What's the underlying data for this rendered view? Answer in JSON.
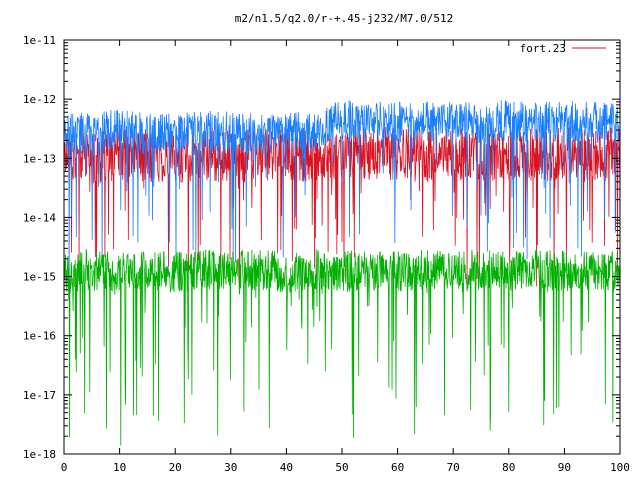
{
  "chart_data": {
    "type": "line",
    "title": "m2/n1.5/q2.0/r-+.45-j232/M7.0/512",
    "xlabel": "",
    "ylabel": "",
    "xlim": [
      0,
      100
    ],
    "ylim": [
      1e-18,
      1e-11
    ],
    "yscale": "log",
    "grid": false,
    "legend_position": "top-right",
    "x_ticks": [
      0,
      10,
      20,
      30,
      40,
      50,
      60,
      70,
      80,
      90,
      100
    ],
    "x_tick_labels": [
      "0",
      "10",
      "20",
      "30",
      "40",
      "50",
      "60",
      "70",
      "80",
      "90",
      "100"
    ],
    "y_ticks": [
      1e-18,
      1e-17,
      1e-16,
      1e-15,
      1e-14,
      1e-13,
      1e-12,
      1e-11
    ],
    "y_tick_labels": [
      "1e-18",
      "1e-17",
      "1e-16",
      "1e-15",
      "1e-14",
      "1e-13",
      "1e-12",
      "1e-11"
    ],
    "series": [
      {
        "name": "fort.23",
        "color": "#dd1122",
        "x": [
          0,
          5,
          10,
          15,
          20,
          25,
          30,
          35,
          40,
          45,
          50,
          55,
          60,
          65,
          70,
          75,
          80,
          85,
          90,
          95,
          100
        ],
        "y": [
          1.2e-13,
          1e-13,
          1.2e-13,
          1.1e-13,
          1e-13,
          1.2e-13,
          1.1e-13,
          1.1e-13,
          1.2e-13,
          1e-13,
          1.3e-13,
          1.2e-13,
          1.2e-13,
          1.1e-13,
          1.2e-13,
          1.1e-13,
          1.2e-13,
          1.1e-13,
          1.2e-13,
          1.1e-13,
          1.2e-13
        ]
      },
      {
        "color": "#1a7fff",
        "x": [
          0,
          5,
          10,
          15,
          20,
          25,
          30,
          35,
          40,
          45,
          50,
          55,
          60,
          65,
          70,
          75,
          80,
          85,
          90,
          95,
          100
        ],
        "y": [
          2.5e-13,
          2.8e-13,
          3e-13,
          2.6e-13,
          2.7e-13,
          2.8e-13,
          2.9e-13,
          2.6e-13,
          2.8e-13,
          2.7e-13,
          4.5e-13,
          4e-13,
          4.2e-13,
          4.1e-13,
          4.3e-13,
          4e-13,
          4.4e-13,
          4.1e-13,
          4.2e-13,
          4e-13,
          4.3e-13
        ]
      },
      {
        "color": "#00b000",
        "x": [
          0,
          5,
          10,
          15,
          20,
          25,
          30,
          35,
          40,
          45,
          50,
          55,
          60,
          65,
          70,
          75,
          80,
          85,
          90,
          95,
          100
        ],
        "y": [
          1.2e-15,
          1.3e-15,
          1.2e-15,
          1.3e-15,
          1.2e-15,
          1.3e-15,
          1.2e-15,
          1.3e-15,
          1.2e-15,
          1.3e-15,
          1.2e-15,
          1.3e-15,
          1.2e-15,
          1.3e-15,
          1.2e-15,
          1.3e-15,
          1.2e-15,
          1.3e-15,
          1.2e-15,
          1.3e-15,
          1.2e-15
        ]
      }
    ]
  }
}
